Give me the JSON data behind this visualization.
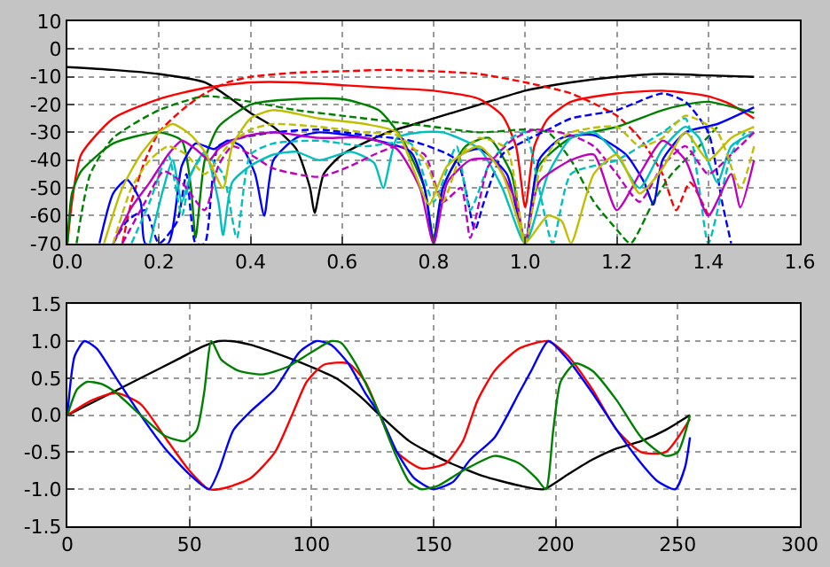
{
  "chart_data": [
    {
      "type": "line",
      "xlim": [
        0,
        1.6
      ],
      "xticks": [
        {
          "value": 0,
          "label": "0.0"
        },
        {
          "value": 0.2,
          "label": "0.2"
        },
        {
          "value": 0.4,
          "label": "0.4"
        },
        {
          "value": 0.6,
          "label": "0.6"
        },
        {
          "value": 0.8,
          "label": "0.8"
        },
        {
          "value": 1.0,
          "label": "1.0"
        },
        {
          "value": 1.2,
          "label": "1.2"
        },
        {
          "value": 1.4,
          "label": "1.4"
        },
        {
          "value": 1.6,
          "label": "1.6"
        }
      ],
      "ylim": [
        -70,
        10
      ],
      "yticks": [
        -70,
        -60,
        -50,
        -40,
        -30,
        -20,
        -10,
        0,
        10
      ],
      "grid": true,
      "series": [
        {
          "color": "#000000",
          "line_style": "solid",
          "x": [
            0,
            0.1,
            0.2,
            0.3,
            0.35,
            0.4,
            0.45,
            0.5,
            0.53,
            0.54,
            0.56,
            0.6,
            0.7,
            0.8,
            0.9,
            1.0,
            1.1,
            1.2,
            1.3,
            1.4,
            1.5
          ],
          "values": [
            -6.5,
            -7.5,
            -9,
            -12,
            -17,
            -23,
            -28,
            -36,
            -50,
            -59,
            -45,
            -38,
            -30,
            -25,
            -20,
            -15,
            -12,
            -10,
            -9,
            -9.5,
            -10
          ]
        },
        {
          "color": "#ff0000",
          "line_style": "solid",
          "x": [
            0,
            0.01,
            0.03,
            0.1,
            0.2,
            0.3,
            0.4,
            0.5,
            0.6,
            0.7,
            0.8,
            0.9,
            0.95,
            0.98,
            1.0,
            1.02,
            1.05,
            1.1,
            1.2,
            1.3,
            1.4,
            1.45,
            1.5
          ],
          "values": [
            -70,
            -55,
            -38,
            -25,
            -18,
            -14,
            -12,
            -12,
            -13,
            -14,
            -15,
            -18,
            -24,
            -35,
            -57,
            -35,
            -25,
            -19,
            -16,
            -15,
            -17,
            -20,
            -25
          ]
        },
        {
          "color": "#ff0000",
          "line_style": "dashed",
          "x": [
            0.12,
            0.14,
            0.17,
            0.2,
            0.25,
            0.3,
            0.35,
            0.4,
            0.5,
            0.6,
            0.7,
            0.8,
            0.9,
            1.0,
            1.1,
            1.2,
            1.25,
            1.3,
            1.33,
            1.36,
            1.4
          ],
          "values": [
            -70,
            -55,
            -40,
            -30,
            -22,
            -16,
            -12,
            -10,
            -8.5,
            -8,
            -7.5,
            -8,
            -9,
            -12,
            -16,
            -24,
            -32,
            -45,
            -58,
            -48,
            -60
          ]
        },
        {
          "color": "#008000",
          "line_style": "solid",
          "x": [
            0,
            0.01,
            0.03,
            0.1,
            0.2,
            0.25,
            0.27,
            0.28,
            0.3,
            0.33,
            0.4,
            0.5,
            0.6,
            0.68,
            0.73,
            0.78,
            0.8,
            0.82,
            0.87,
            0.92,
            0.97,
            1.0,
            1.03,
            1.1,
            1.2,
            1.3,
            1.35,
            1.4,
            1.5
          ],
          "values": [
            -70,
            -52,
            -44,
            -34,
            -30,
            -33,
            -50,
            -68,
            -40,
            -28,
            -20,
            -18,
            -18,
            -22,
            -32,
            -50,
            -68,
            -50,
            -35,
            -32,
            -45,
            -70,
            -42,
            -32,
            -28,
            -22,
            -20,
            -19,
            -23
          ]
        },
        {
          "color": "#008000",
          "line_style": "dashed",
          "x": [
            0.02,
            0.05,
            0.1,
            0.2,
            0.3,
            0.4,
            0.5,
            0.6,
            0.7,
            0.8,
            0.9,
            1.0,
            1.05,
            1.1,
            1.15,
            1.2,
            1.23,
            1.28,
            1.32,
            1.38,
            1.42
          ],
          "values": [
            -70,
            -45,
            -32,
            -22,
            -17,
            -19,
            -22,
            -24,
            -26,
            -28,
            -30,
            -29,
            -30,
            -40,
            -55,
            -65,
            -70,
            -55,
            -45,
            -35,
            -28
          ]
        },
        {
          "color": "#0000ff",
          "line_style": "solid",
          "x": [
            0.07,
            0.1,
            0.13,
            0.16,
            0.17,
            0.22,
            0.25,
            0.28,
            0.32,
            0.35,
            0.38,
            0.41,
            0.43,
            0.45,
            0.5,
            0.55,
            0.65,
            0.75,
            0.78,
            0.8,
            0.82,
            0.86,
            0.9,
            0.96,
            1.0,
            1.03,
            1.08,
            1.15,
            1.22,
            1.26,
            1.28,
            1.3,
            1.35,
            1.42,
            1.5
          ],
          "values": [
            -70,
            -52,
            -47,
            -55,
            -70,
            -70,
            -42,
            -34,
            -36,
            -33,
            -35,
            -45,
            -60,
            -40,
            -32,
            -30,
            -32,
            -37,
            -50,
            -70,
            -50,
            -38,
            -36,
            -45,
            -70,
            -40,
            -32,
            -31,
            -38,
            -48,
            -56,
            -40,
            -30,
            -27,
            -21
          ]
        },
        {
          "color": "#0000ff",
          "line_style": "dashed",
          "x": [
            0.1,
            0.13,
            0.17,
            0.2,
            0.24,
            0.26,
            0.28,
            0.3,
            0.33,
            0.38,
            0.45,
            0.55,
            0.65,
            0.75,
            0.85,
            0.89,
            0.91,
            0.95,
            1.0,
            1.05,
            1.1,
            1.2,
            1.3,
            1.35,
            1.4,
            1.43,
            1.45
          ],
          "values": [
            -70,
            -62,
            -58,
            -70,
            -62,
            -45,
            -70,
            -70,
            -35,
            -32,
            -30,
            -29,
            -31,
            -33,
            -40,
            -65,
            -55,
            -38,
            -33,
            -29,
            -25,
            -22,
            -16,
            -19,
            -30,
            -55,
            -70
          ]
        },
        {
          "color": "#00bfbf",
          "line_style": "solid",
          "x": [
            0.18,
            0.21,
            0.23,
            0.25,
            0.27,
            0.3,
            0.33,
            0.34,
            0.36,
            0.4,
            0.45,
            0.5,
            0.55,
            0.62,
            0.67,
            0.69,
            0.72,
            0.77,
            0.82,
            0.9,
            0.95,
            1.0,
            1.05,
            1.1,
            1.15,
            1.2,
            1.25,
            1.3,
            1.35,
            1.38,
            1.42,
            1.45,
            1.5
          ],
          "values": [
            -70,
            -50,
            -40,
            -55,
            -45,
            -37,
            -55,
            -67,
            -48,
            -42,
            -38,
            -37,
            -40,
            -37,
            -41,
            -50,
            -32,
            -30,
            -30,
            -36,
            -50,
            -70,
            -45,
            -32,
            -30,
            -38,
            -50,
            -36,
            -28,
            -32,
            -48,
            -35,
            -30
          ]
        },
        {
          "color": "#00bfbf",
          "line_style": "dashed",
          "x": [
            0.14,
            0.18,
            0.22,
            0.25,
            0.27,
            0.3,
            0.34,
            0.37,
            0.4,
            0.45,
            0.55,
            0.65,
            0.75,
            0.8,
            0.85,
            0.88,
            0.92,
            0.97,
            1.0,
            1.03,
            1.06,
            1.1,
            1.2,
            1.3,
            1.35,
            1.38,
            1.4,
            1.45,
            1.48
          ],
          "values": [
            -70,
            -55,
            -38,
            -60,
            -45,
            -38,
            -45,
            -68,
            -38,
            -34,
            -33,
            -35,
            -34,
            -55,
            -35,
            -58,
            -42,
            -32,
            -30,
            -50,
            -70,
            -45,
            -40,
            -30,
            -25,
            -50,
            -70,
            -38,
            -30
          ]
        },
        {
          "color": "#bf00bf",
          "line_style": "solid",
          "x": [
            0.1,
            0.14,
            0.18,
            0.22,
            0.25,
            0.28,
            0.31,
            0.33,
            0.36,
            0.4,
            0.45,
            0.55,
            0.65,
            0.72,
            0.77,
            0.8,
            0.83,
            0.88,
            0.93,
            0.98,
            1.0,
            1.03,
            1.1,
            1.15,
            1.2,
            1.25,
            1.3,
            1.35,
            1.4,
            1.45,
            1.47,
            1.5
          ],
          "values": [
            -70,
            -57,
            -48,
            -38,
            -33,
            -36,
            -40,
            -36,
            -33,
            -31,
            -30,
            -32,
            -32,
            -36,
            -50,
            -70,
            -48,
            -40,
            -40,
            -55,
            -70,
            -48,
            -40,
            -38,
            -58,
            -45,
            -33,
            -40,
            -60,
            -45,
            -57,
            -40
          ]
        },
        {
          "color": "#bf00bf",
          "line_style": "dashed",
          "x": [
            0.12,
            0.17,
            0.21,
            0.25,
            0.3,
            0.33,
            0.36,
            0.4,
            0.45,
            0.55,
            0.62,
            0.67,
            0.72,
            0.78,
            0.82,
            0.86,
            0.88,
            0.92,
            0.97,
            1.02,
            1.1,
            1.15,
            1.2,
            1.25,
            1.3,
            1.35,
            1.4,
            1.45,
            1.5
          ],
          "values": [
            -70,
            -55,
            -44,
            -48,
            -58,
            -42,
            -35,
            -38,
            -43,
            -46,
            -42,
            -38,
            -35,
            -38,
            -55,
            -50,
            -68,
            -42,
            -33,
            -29,
            -31,
            -35,
            -45,
            -55,
            -42,
            -35,
            -45,
            -38,
            -30
          ]
        },
        {
          "color": "#bfbf00",
          "line_style": "solid",
          "x": [
            0.08,
            0.12,
            0.16,
            0.2,
            0.23,
            0.27,
            0.3,
            0.34,
            0.36,
            0.4,
            0.45,
            0.55,
            0.65,
            0.72,
            0.76,
            0.79,
            0.83,
            0.9,
            0.95,
            0.99,
            1.0,
            1.05,
            1.08,
            1.1,
            1.15,
            1.2,
            1.25,
            1.3,
            1.35,
            1.4,
            1.45,
            1.5
          ],
          "values": [
            -70,
            -50,
            -38,
            -30,
            -27,
            -31,
            -37,
            -50,
            -35,
            -25,
            -22,
            -25,
            -27,
            -30,
            -45,
            -56,
            -42,
            -35,
            -45,
            -65,
            -70,
            -60,
            -62,
            -70,
            -45,
            -38,
            -52,
            -43,
            -30,
            -40,
            -32,
            -28
          ]
        },
        {
          "color": "#bfbf00",
          "line_style": "dashed",
          "x": [
            0.1,
            0.14,
            0.18,
            0.22,
            0.26,
            0.3,
            0.35,
            0.4,
            0.45,
            0.55,
            0.65,
            0.72,
            0.78,
            0.82,
            0.86,
            0.9,
            0.96,
            1.0,
            1.03,
            1.06,
            1.1,
            1.2,
            1.25,
            1.3,
            1.35,
            1.42,
            1.47,
            1.5
          ],
          "values": [
            -70,
            -50,
            -40,
            -35,
            -38,
            -45,
            -35,
            -29,
            -27,
            -28,
            -30,
            -31,
            -40,
            -55,
            -38,
            -32,
            -36,
            -70,
            -45,
            -35,
            -30,
            -28,
            -35,
            -32,
            -24,
            -30,
            -50,
            -35
          ]
        }
      ]
    },
    {
      "type": "line",
      "xlim": [
        0,
        300
      ],
      "xticks": [
        0,
        50,
        100,
        150,
        200,
        250,
        300
      ],
      "ylim": [
        -1.5,
        1.5
      ],
      "yticks": [
        {
          "value": -1.5,
          "label": "-1.5"
        },
        {
          "value": -1,
          "label": "-1.0"
        },
        {
          "value": -0.5,
          "label": "-0.5"
        },
        {
          "value": 0,
          "label": "0.0"
        },
        {
          "value": 0.5,
          "label": "0.5"
        },
        {
          "value": 1,
          "label": "1.0"
        },
        {
          "value": 1.5,
          "label": "1.5"
        }
      ],
      "grid": true,
      "series": [
        {
          "color": "#000000",
          "line_style": "solid",
          "x": [
            0,
            15,
            30,
            45,
            55,
            62,
            67,
            75,
            90,
            100,
            110,
            120,
            128,
            140,
            155,
            170,
            185,
            195,
            205,
            215,
            225,
            235,
            245,
            255
          ],
          "values": [
            0,
            0.25,
            0.5,
            0.75,
            0.92,
            1.0,
            1.0,
            0.95,
            0.78,
            0.65,
            0.5,
            0.25,
            0.0,
            -0.35,
            -0.62,
            -0.82,
            -0.95,
            -1.0,
            -0.8,
            -0.6,
            -0.45,
            -0.35,
            -0.2,
            0.0
          ]
        },
        {
          "color": "#ff0000",
          "line_style": "solid",
          "x": [
            0,
            10,
            20,
            30,
            40,
            50,
            58,
            65,
            75,
            85,
            92,
            98,
            105,
            115,
            122,
            128,
            135,
            145,
            155,
            162,
            168,
            175,
            185,
            197,
            205,
            215,
            225,
            235,
            245,
            255
          ],
          "values": [
            0,
            0.2,
            0.3,
            0.15,
            -0.3,
            -0.75,
            -1.0,
            -0.98,
            -0.85,
            -0.5,
            0.0,
            0.45,
            0.68,
            0.7,
            0.45,
            0.0,
            -0.5,
            -0.72,
            -0.65,
            -0.35,
            0.2,
            0.6,
            0.9,
            1.0,
            0.8,
            0.35,
            -0.2,
            -0.5,
            -0.5,
            -0.05
          ]
        },
        {
          "color": "#0000ff",
          "line_style": "solid",
          "x": [
            0,
            3,
            7,
            12,
            20,
            30,
            40,
            50,
            58,
            62,
            68,
            75,
            85,
            95,
            102,
            108,
            115,
            122,
            128,
            135,
            142,
            150,
            158,
            165,
            175,
            185,
            190,
            197,
            205,
            215,
            225,
            235,
            242,
            249,
            253,
            255
          ],
          "values": [
            0,
            0.8,
            1.0,
            0.9,
            0.5,
            0.0,
            -0.45,
            -0.8,
            -1.0,
            -0.75,
            -0.2,
            0.05,
            0.35,
            0.85,
            1.0,
            0.95,
            0.7,
            0.3,
            0.0,
            -0.5,
            -0.85,
            -1.0,
            -0.9,
            -0.6,
            -0.3,
            0.3,
            0.6,
            1.0,
            0.75,
            0.3,
            -0.2,
            -0.65,
            -0.9,
            -1.0,
            -0.7,
            -0.3
          ]
        },
        {
          "color": "#008000",
          "line_style": "solid",
          "x": [
            0,
            4,
            8,
            14,
            20,
            30,
            40,
            48,
            53,
            56,
            59,
            63,
            70,
            80,
            90,
            100,
            108,
            112,
            118,
            124,
            128,
            134,
            140,
            145,
            152,
            162,
            175,
            185,
            192,
            196,
            199,
            202,
            208,
            215,
            225,
            235,
            245,
            250,
            255
          ],
          "values": [
            0,
            0.35,
            0.45,
            0.42,
            0.3,
            0.0,
            -0.28,
            -0.35,
            -0.2,
            0.3,
            1.0,
            0.75,
            0.6,
            0.55,
            0.65,
            0.85,
            1.0,
            0.98,
            0.7,
            0.3,
            0.0,
            -0.5,
            -0.9,
            -1.0,
            -0.95,
            -0.75,
            -0.55,
            -0.65,
            -0.85,
            -1.0,
            -0.2,
            0.45,
            0.7,
            0.6,
            0.2,
            -0.3,
            -0.55,
            -0.5,
            0.0
          ]
        }
      ]
    }
  ]
}
